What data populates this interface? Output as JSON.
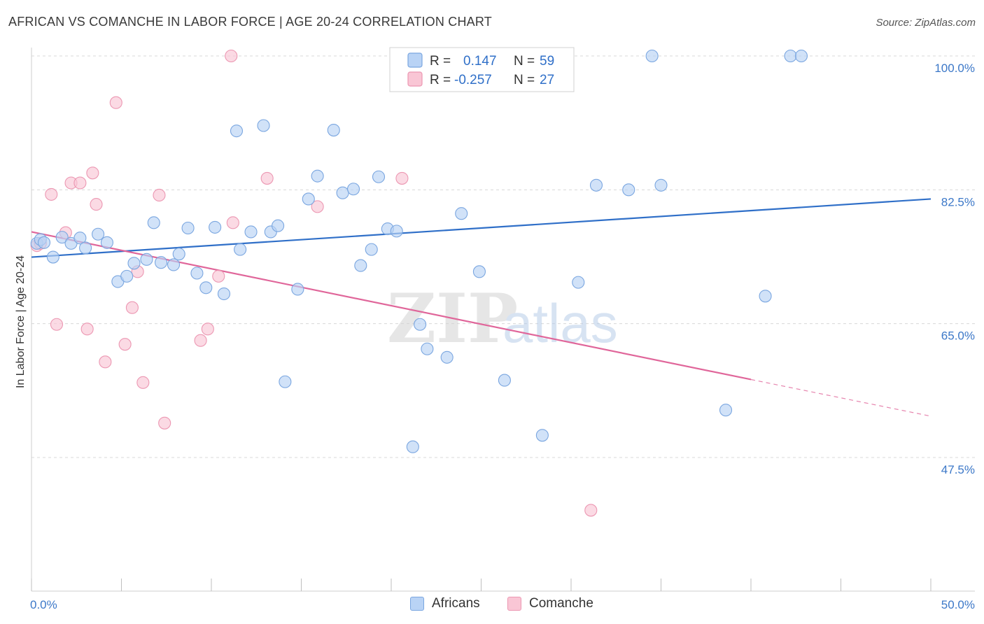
{
  "header": {
    "title": "AFRICAN VS COMANCHE IN LABOR FORCE | AGE 20-24 CORRELATION CHART",
    "source": "Source: ZipAtlas.com"
  },
  "watermark": {
    "zip": "ZIP",
    "atlas": "atlas"
  },
  "legend_top": {
    "africans": {
      "r_label": "R =",
      "r_value": "0.147",
      "n_label": "N =",
      "n_value": "59"
    },
    "comanche": {
      "r_label": "R =",
      "r_value": "-0.257",
      "n_label": "N =",
      "n_value": "27"
    }
  },
  "legend_bottom": {
    "africans": "Africans",
    "comanche": "Comanche"
  },
  "colors": {
    "africans_fill": "#b9d3f5",
    "africans_stroke": "#7aa6e0",
    "africans_line": "#2f6fc8",
    "comanche_fill": "#f9c6d5",
    "comanche_stroke": "#ec97b2",
    "comanche_line": "#e0669a",
    "tick_text": "#3c78c8",
    "grid": "#d8d8d8"
  },
  "chart_data": {
    "type": "scatter",
    "title": "AFRICAN VS COMANCHE IN LABOR FORCE | AGE 20-24 CORRELATION CHART",
    "xlabel": "",
    "ylabel": "In Labor Force | Age 20-24",
    "xlim": [
      0,
      50
    ],
    "ylim": [
      32.5,
      101.5
    ],
    "x_tick_labels": [
      "0.0%",
      "50.0%"
    ],
    "y_ticks": [
      47.5,
      65.0,
      82.5,
      100.0
    ],
    "y_tick_labels": [
      "47.5%",
      "65.0%",
      "82.5%",
      "100.0%"
    ],
    "grid": true,
    "legend_placement": "top-center",
    "series": [
      {
        "name": "Africans",
        "r": 0.147,
        "n": 59,
        "trend": {
          "x0": 0,
          "y0": 73.7,
          "x1": 50,
          "y1": 81.3
        },
        "points": [
          [
            0.3,
            75.5
          ],
          [
            0.5,
            76.0
          ],
          [
            0.7,
            75.6
          ],
          [
            1.2,
            73.7
          ],
          [
            1.7,
            76.3
          ],
          [
            2.2,
            75.5
          ],
          [
            2.7,
            76.2
          ],
          [
            3.0,
            74.9
          ],
          [
            3.7,
            76.7
          ],
          [
            4.2,
            75.6
          ],
          [
            4.8,
            70.5
          ],
          [
            5.3,
            71.2
          ],
          [
            5.7,
            72.9
          ],
          [
            6.4,
            73.4
          ],
          [
            6.8,
            78.2
          ],
          [
            7.2,
            73.0
          ],
          [
            7.9,
            72.7
          ],
          [
            8.2,
            74.1
          ],
          [
            8.7,
            77.5
          ],
          [
            9.2,
            71.6
          ],
          [
            9.7,
            69.7
          ],
          [
            10.2,
            77.6
          ],
          [
            10.7,
            68.9
          ],
          [
            11.4,
            90.2
          ],
          [
            11.6,
            74.7
          ],
          [
            12.2,
            77.0
          ],
          [
            12.9,
            90.9
          ],
          [
            13.3,
            77.0
          ],
          [
            13.7,
            77.8
          ],
          [
            14.1,
            57.4
          ],
          [
            14.8,
            69.5
          ],
          [
            15.4,
            81.3
          ],
          [
            15.9,
            84.3
          ],
          [
            16.8,
            90.3
          ],
          [
            17.3,
            82.1
          ],
          [
            17.9,
            82.6
          ],
          [
            18.3,
            72.6
          ],
          [
            18.9,
            74.7
          ],
          [
            19.3,
            84.2
          ],
          [
            19.8,
            77.4
          ],
          [
            20.3,
            77.1
          ],
          [
            21.2,
            48.9
          ],
          [
            21.6,
            64.9
          ],
          [
            22.0,
            61.7
          ],
          [
            22.9,
            100.0
          ],
          [
            23.1,
            60.6
          ],
          [
            23.9,
            79.4
          ],
          [
            24.9,
            71.8
          ],
          [
            26.3,
            57.6
          ],
          [
            28.4,
            50.4
          ],
          [
            30.4,
            70.4
          ],
          [
            31.4,
            83.1
          ],
          [
            33.2,
            82.5
          ],
          [
            34.5,
            100.0
          ],
          [
            35.0,
            83.1
          ],
          [
            38.6,
            53.7
          ],
          [
            40.8,
            68.6
          ],
          [
            42.2,
            100.0
          ],
          [
            42.8,
            100.0
          ]
        ]
      },
      {
        "name": "Comanche",
        "r": -0.257,
        "n": 27,
        "trend": {
          "x0": 0,
          "y0": 77.0,
          "x1": 40,
          "y1": 57.7,
          "dashed_to_x": 50,
          "dashed_to_y": 52.9
        },
        "points": [
          [
            0.3,
            75.2
          ],
          [
            0.5,
            75.5
          ],
          [
            1.1,
            81.9
          ],
          [
            1.4,
            64.9
          ],
          [
            1.9,
            76.9
          ],
          [
            2.2,
            83.4
          ],
          [
            2.7,
            83.4
          ],
          [
            3.1,
            64.3
          ],
          [
            3.4,
            84.7
          ],
          [
            3.6,
            80.6
          ],
          [
            4.1,
            60.0
          ],
          [
            4.7,
            93.9
          ],
          [
            5.2,
            62.3
          ],
          [
            5.6,
            67.1
          ],
          [
            5.9,
            71.8
          ],
          [
            6.2,
            57.3
          ],
          [
            7.1,
            81.8
          ],
          [
            7.4,
            52.0
          ],
          [
            9.4,
            62.8
          ],
          [
            9.8,
            64.3
          ],
          [
            10.4,
            71.2
          ],
          [
            11.2,
            78.2
          ],
          [
            11.1,
            100.0
          ],
          [
            13.1,
            84.0
          ],
          [
            15.9,
            80.3
          ],
          [
            20.6,
            84.0
          ],
          [
            31.1,
            40.6
          ]
        ]
      }
    ]
  }
}
